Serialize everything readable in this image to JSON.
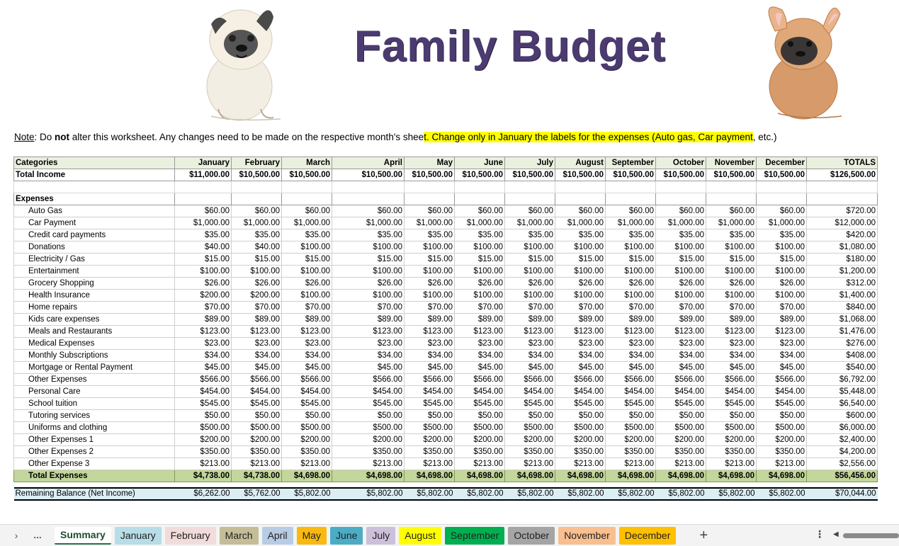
{
  "title": "Family Budget",
  "note": {
    "label": "Note",
    "p1": ": Do ",
    "bold": "not",
    "p2": " alter this worksheet. Any changes need to be made on the respective month's shee",
    "highlight": "t. Change only in January the labels for the expenses (Auto gas, Car payment",
    "p3": ", etc.)"
  },
  "header": {
    "categories": "Categories",
    "months": [
      "January",
      "February",
      "March",
      "April",
      "May",
      "June",
      "July",
      "August",
      "September",
      "October",
      "November",
      "December"
    ],
    "totals": "TOTALS"
  },
  "income": {
    "label": "Total Income",
    "values": [
      "$11,000.00",
      "$10,500.00",
      "$10,500.00",
      "$10,500.00",
      "$10,500.00",
      "$10,500.00",
      "$10,500.00",
      "$10,500.00",
      "$10,500.00",
      "$10,500.00",
      "$10,500.00",
      "$10,500.00"
    ],
    "total": "$126,500.00"
  },
  "expenses_label": "Expenses",
  "expenses": [
    {
      "name": "Auto Gas",
      "values": [
        "$60.00",
        "$60.00",
        "$60.00",
        "$60.00",
        "$60.00",
        "$60.00",
        "$60.00",
        "$60.00",
        "$60.00",
        "$60.00",
        "$60.00",
        "$60.00"
      ],
      "total": "$720.00"
    },
    {
      "name": "Car Payment",
      "values": [
        "$1,000.00",
        "$1,000.00",
        "$1,000.00",
        "$1,000.00",
        "$1,000.00",
        "$1,000.00",
        "$1,000.00",
        "$1,000.00",
        "$1,000.00",
        "$1,000.00",
        "$1,000.00",
        "$1,000.00"
      ],
      "total": "$12,000.00"
    },
    {
      "name": "Credit card payments",
      "values": [
        "$35.00",
        "$35.00",
        "$35.00",
        "$35.00",
        "$35.00",
        "$35.00",
        "$35.00",
        "$35.00",
        "$35.00",
        "$35.00",
        "$35.00",
        "$35.00"
      ],
      "total": "$420.00"
    },
    {
      "name": "Donations",
      "values": [
        "$40.00",
        "$40.00",
        "$100.00",
        "$100.00",
        "$100.00",
        "$100.00",
        "$100.00",
        "$100.00",
        "$100.00",
        "$100.00",
        "$100.00",
        "$100.00"
      ],
      "total": "$1,080.00"
    },
    {
      "name": "Electricity / Gas",
      "values": [
        "$15.00",
        "$15.00",
        "$15.00",
        "$15.00",
        "$15.00",
        "$15.00",
        "$15.00",
        "$15.00",
        "$15.00",
        "$15.00",
        "$15.00",
        "$15.00"
      ],
      "total": "$180.00"
    },
    {
      "name": "Entertainment",
      "values": [
        "$100.00",
        "$100.00",
        "$100.00",
        "$100.00",
        "$100.00",
        "$100.00",
        "$100.00",
        "$100.00",
        "$100.00",
        "$100.00",
        "$100.00",
        "$100.00"
      ],
      "total": "$1,200.00"
    },
    {
      "name": "Grocery Shopping",
      "values": [
        "$26.00",
        "$26.00",
        "$26.00",
        "$26.00",
        "$26.00",
        "$26.00",
        "$26.00",
        "$26.00",
        "$26.00",
        "$26.00",
        "$26.00",
        "$26.00"
      ],
      "total": "$312.00"
    },
    {
      "name": "Health Insurance",
      "values": [
        "$200.00",
        "$200.00",
        "$100.00",
        "$100.00",
        "$100.00",
        "$100.00",
        "$100.00",
        "$100.00",
        "$100.00",
        "$100.00",
        "$100.00",
        "$100.00"
      ],
      "total": "$1,400.00"
    },
    {
      "name": "Home repairs",
      "values": [
        "$70.00",
        "$70.00",
        "$70.00",
        "$70.00",
        "$70.00",
        "$70.00",
        "$70.00",
        "$70.00",
        "$70.00",
        "$70.00",
        "$70.00",
        "$70.00"
      ],
      "total": "$840.00"
    },
    {
      "name": "Kids care expenses",
      "values": [
        "$89.00",
        "$89.00",
        "$89.00",
        "$89.00",
        "$89.00",
        "$89.00",
        "$89.00",
        "$89.00",
        "$89.00",
        "$89.00",
        "$89.00",
        "$89.00"
      ],
      "total": "$1,068.00"
    },
    {
      "name": "Meals and Restaurants",
      "values": [
        "$123.00",
        "$123.00",
        "$123.00",
        "$123.00",
        "$123.00",
        "$123.00",
        "$123.00",
        "$123.00",
        "$123.00",
        "$123.00",
        "$123.00",
        "$123.00"
      ],
      "total": "$1,476.00"
    },
    {
      "name": "Medical Expenses",
      "values": [
        "$23.00",
        "$23.00",
        "$23.00",
        "$23.00",
        "$23.00",
        "$23.00",
        "$23.00",
        "$23.00",
        "$23.00",
        "$23.00",
        "$23.00",
        "$23.00"
      ],
      "total": "$276.00"
    },
    {
      "name": "Monthly Subscriptions",
      "values": [
        "$34.00",
        "$34.00",
        "$34.00",
        "$34.00",
        "$34.00",
        "$34.00",
        "$34.00",
        "$34.00",
        "$34.00",
        "$34.00",
        "$34.00",
        "$34.00"
      ],
      "total": "$408.00"
    },
    {
      "name": "Mortgage or Rental Payment",
      "values": [
        "$45.00",
        "$45.00",
        "$45.00",
        "$45.00",
        "$45.00",
        "$45.00",
        "$45.00",
        "$45.00",
        "$45.00",
        "$45.00",
        "$45.00",
        "$45.00"
      ],
      "total": "$540.00"
    },
    {
      "name": "Other Expenses",
      "values": [
        "$566.00",
        "$566.00",
        "$566.00",
        "$566.00",
        "$566.00",
        "$566.00",
        "$566.00",
        "$566.00",
        "$566.00",
        "$566.00",
        "$566.00",
        "$566.00"
      ],
      "total": "$6,792.00"
    },
    {
      "name": "Personal Care",
      "values": [
        "$454.00",
        "$454.00",
        "$454.00",
        "$454.00",
        "$454.00",
        "$454.00",
        "$454.00",
        "$454.00",
        "$454.00",
        "$454.00",
        "$454.00",
        "$454.00"
      ],
      "total": "$5,448.00"
    },
    {
      "name": "School tuition",
      "values": [
        "$545.00",
        "$545.00",
        "$545.00",
        "$545.00",
        "$545.00",
        "$545.00",
        "$545.00",
        "$545.00",
        "$545.00",
        "$545.00",
        "$545.00",
        "$545.00"
      ],
      "total": "$6,540.00"
    },
    {
      "name": "Tutoring services",
      "values": [
        "$50.00",
        "$50.00",
        "$50.00",
        "$50.00",
        "$50.00",
        "$50.00",
        "$50.00",
        "$50.00",
        "$50.00",
        "$50.00",
        "$50.00",
        "$50.00"
      ],
      "total": "$600.00"
    },
    {
      "name": "Uniforms and clothing",
      "values": [
        "$500.00",
        "$500.00",
        "$500.00",
        "$500.00",
        "$500.00",
        "$500.00",
        "$500.00",
        "$500.00",
        "$500.00",
        "$500.00",
        "$500.00",
        "$500.00"
      ],
      "total": "$6,000.00"
    },
    {
      "name": "Other Expenses 1",
      "values": [
        "$200.00",
        "$200.00",
        "$200.00",
        "$200.00",
        "$200.00",
        "$200.00",
        "$200.00",
        "$200.00",
        "$200.00",
        "$200.00",
        "$200.00",
        "$200.00"
      ],
      "total": "$2,400.00"
    },
    {
      "name": "Other Expenses  2",
      "values": [
        "$350.00",
        "$350.00",
        "$350.00",
        "$350.00",
        "$350.00",
        "$350.00",
        "$350.00",
        "$350.00",
        "$350.00",
        "$350.00",
        "$350.00",
        "$350.00"
      ],
      "total": "$4,200.00"
    },
    {
      "name": "Other Expense 3",
      "values": [
        "$213.00",
        "$213.00",
        "$213.00",
        "$213.00",
        "$213.00",
        "$213.00",
        "$213.00",
        "$213.00",
        "$213.00",
        "$213.00",
        "$213.00",
        "$213.00"
      ],
      "total": "$2,556.00"
    }
  ],
  "total_expenses": {
    "label": "Total Expenses",
    "values": [
      "$4,738.00",
      "$4,738.00",
      "$4,698.00",
      "$4,698.00",
      "$4,698.00",
      "$4,698.00",
      "$4,698.00",
      "$4,698.00",
      "$4,698.00",
      "$4,698.00",
      "$4,698.00",
      "$4,698.00"
    ],
    "total": "$56,456.00"
  },
  "remaining": {
    "label": "Remaining Balance (Net Income)",
    "values": [
      "$6,262.00",
      "$5,762.00",
      "$5,802.00",
      "$5,802.00",
      "$5,802.00",
      "$5,802.00",
      "$5,802.00",
      "$5,802.00",
      "$5,802.00",
      "$5,802.00",
      "$5,802.00",
      "$5,802.00"
    ],
    "total": "$70,044.00"
  },
  "tabs": [
    {
      "label": "Summary",
      "color": "#ffffff",
      "active": true
    },
    {
      "label": "January",
      "color": "#b7dde8"
    },
    {
      "label": "February",
      "color": "#f2dcdb"
    },
    {
      "label": "March",
      "color": "#c4bd97"
    },
    {
      "label": "April",
      "color": "#b8cce4"
    },
    {
      "label": "May",
      "color": "#f9b90f"
    },
    {
      "label": "June",
      "color": "#4bacc6"
    },
    {
      "label": "July",
      "color": "#ccc0da"
    },
    {
      "label": "August",
      "color": "#ffff00"
    },
    {
      "label": "September",
      "color": "#00b050"
    },
    {
      "label": "October",
      "color": "#a5a5a5"
    },
    {
      "label": "November",
      "color": "#fabf8f"
    },
    {
      "label": "December",
      "color": "#ffc000"
    }
  ],
  "icons": {
    "nav_next": "chevron-right-icon",
    "more_tabs": "ellipsis-icon",
    "add_sheet": "plus-icon",
    "options": "vertical-ellipsis-icon",
    "scroll_left": "triangle-left-icon"
  }
}
